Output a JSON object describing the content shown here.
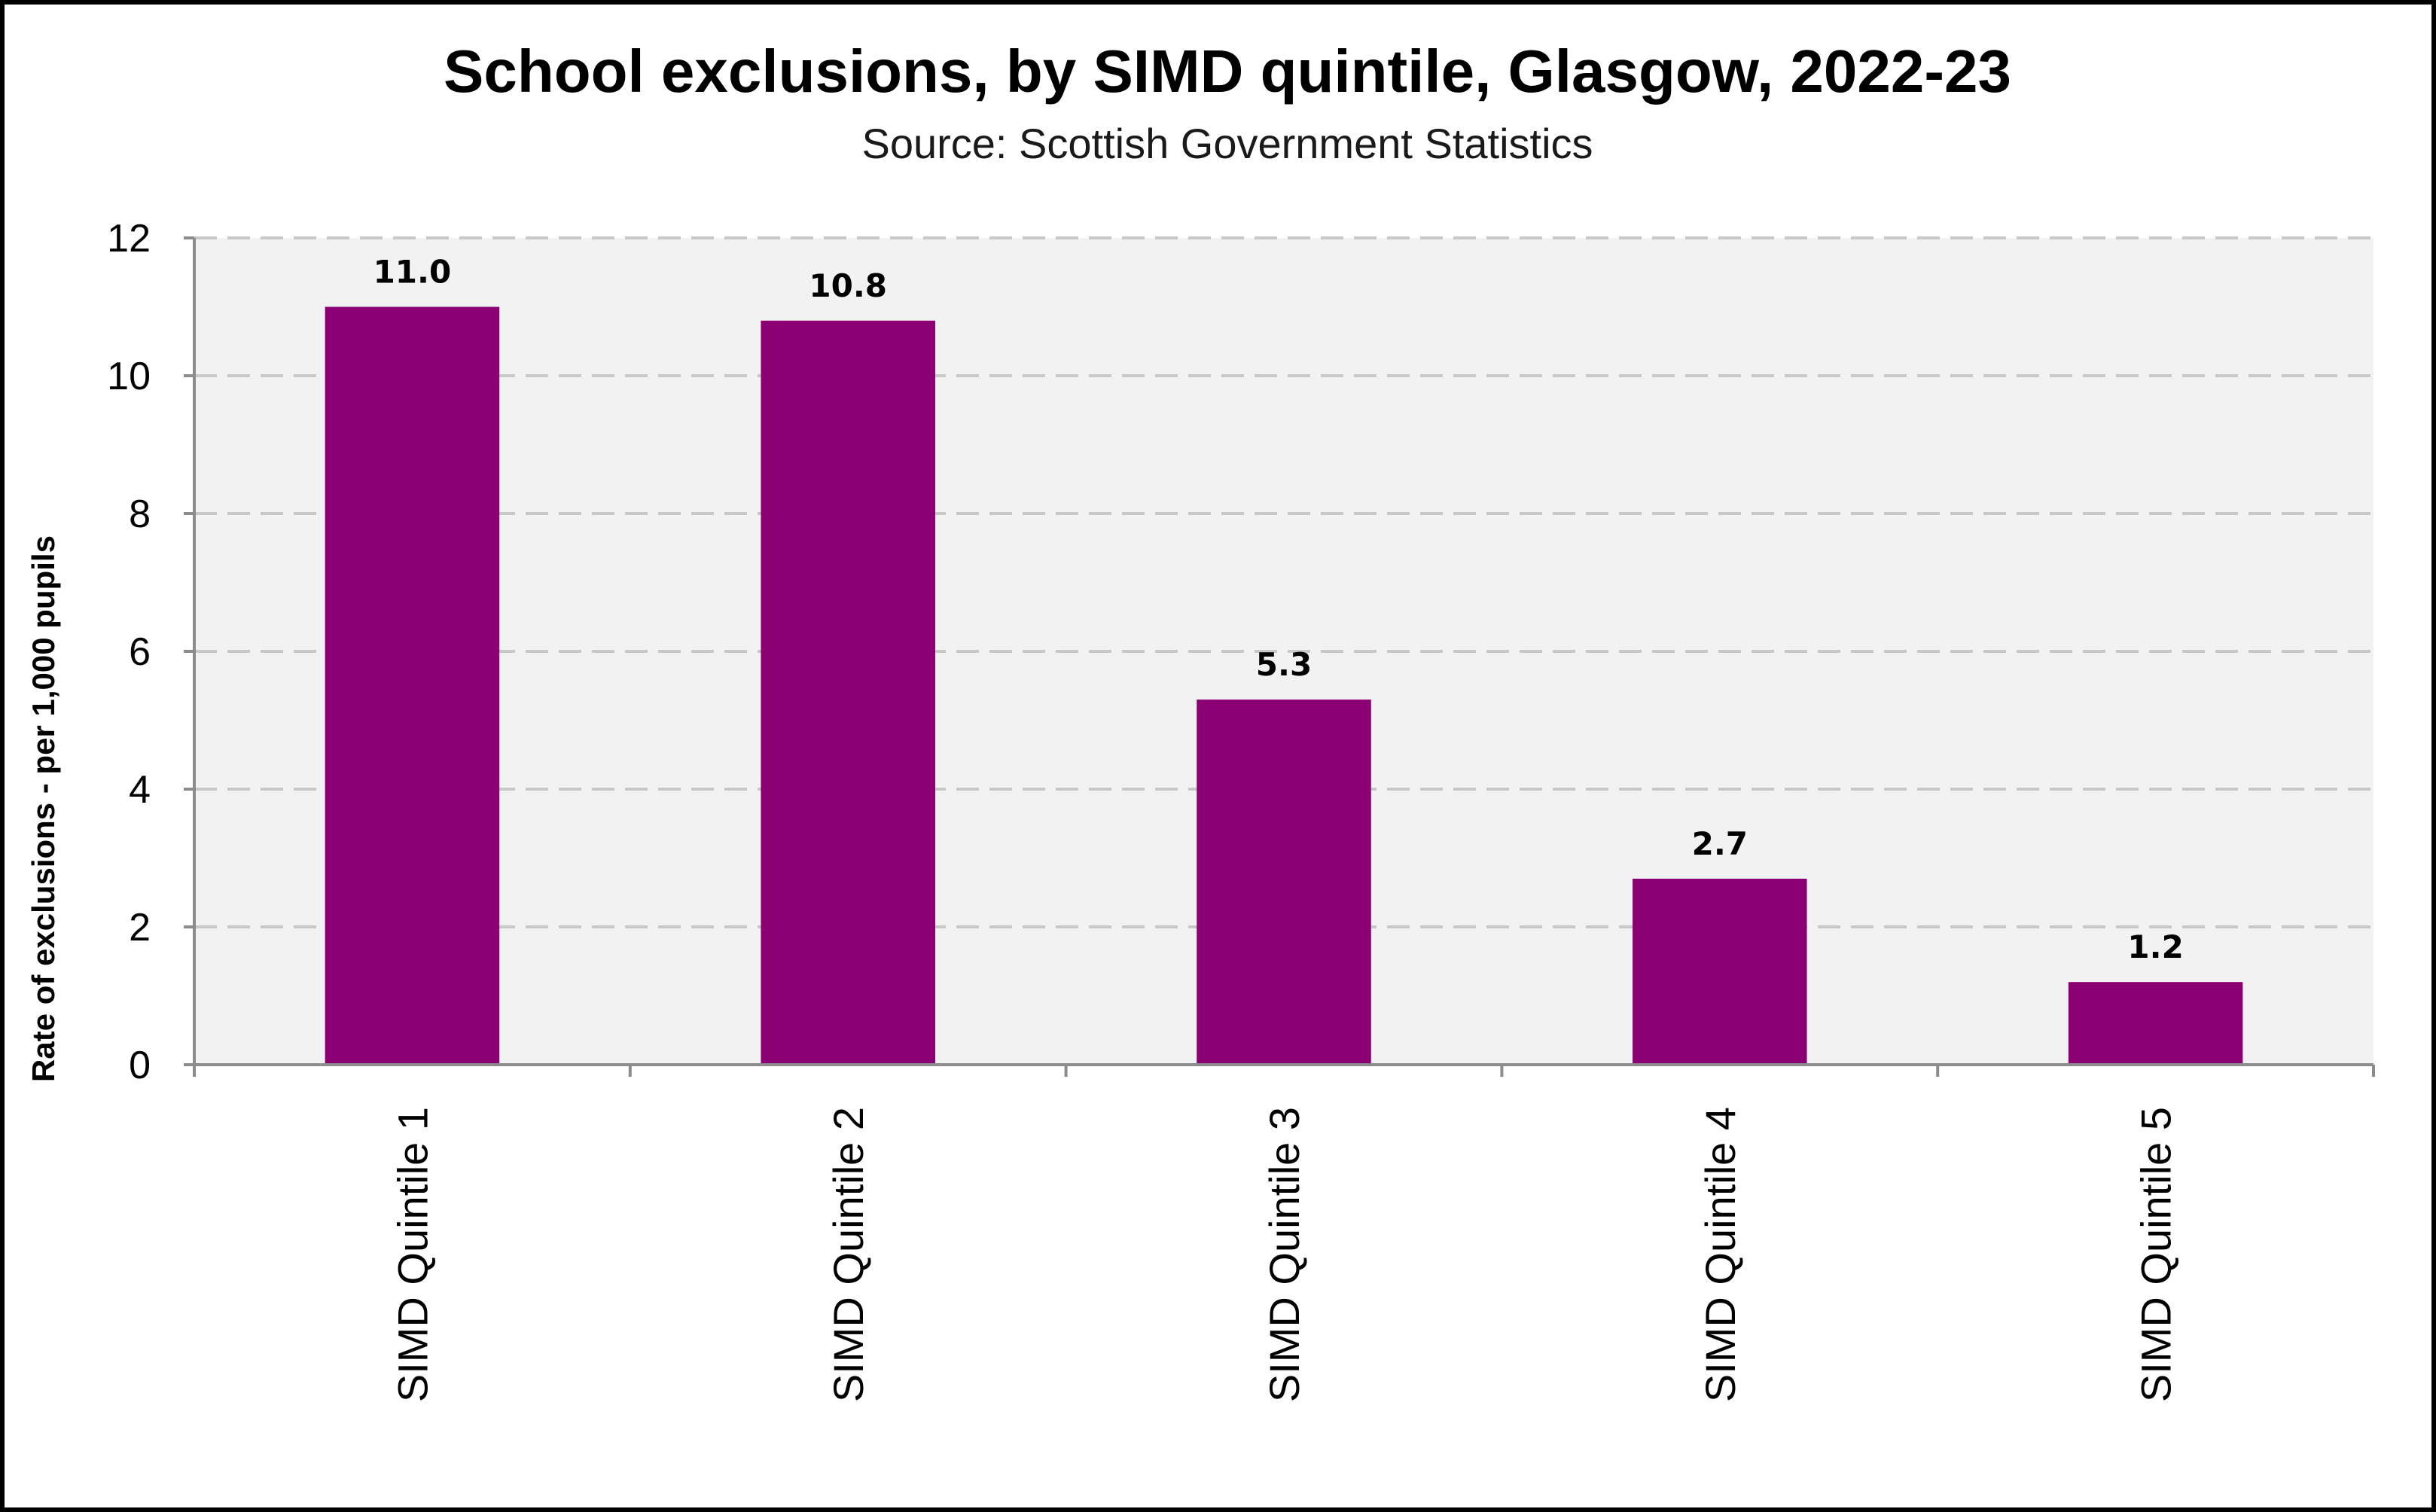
{
  "chart_data": {
    "type": "bar",
    "title": "School exclusions, by SIMD quintile, Glasgow, 2022-23",
    "subtitle": "Source: Scottish Government Statistics",
    "ylabel": "Rate of exclusions - per 1,000 pupils",
    "xlabel": "",
    "categories": [
      "SIMD Quintile 1",
      "SIMD Quintile 2",
      "SIMD Quintile 3",
      "SIMD Quintile 4",
      "SIMD Quintile 5"
    ],
    "values": [
      11.0,
      10.8,
      5.3,
      2.7,
      1.2
    ],
    "data_labels": [
      "11.0",
      "10.8",
      "5.3",
      "2.7",
      "1.2"
    ],
    "ylim": [
      0,
      12
    ],
    "yticks": [
      0,
      2,
      4,
      6,
      8,
      10,
      12
    ],
    "ytick_labels": [
      "0",
      "2",
      "4",
      "6",
      "8",
      "10",
      "12"
    ],
    "grid": "dashed horizontal",
    "legend": "none",
    "colors": {
      "bar": "#8B0073",
      "plot_background": "#F2F2F2",
      "gridline": "#C8C8C8",
      "axis": "#8C8C8C"
    }
  }
}
